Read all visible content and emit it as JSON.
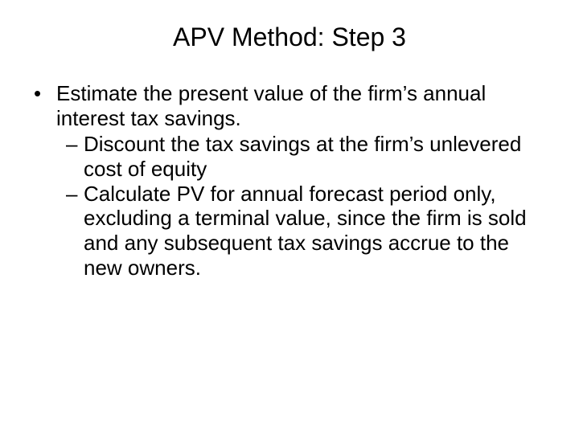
{
  "slide": {
    "title": "APV Method: Step 3",
    "background_color": "#ffffff",
    "text_color": "#000000",
    "title_fontsize": 32,
    "body_fontsize": 26,
    "font_family": "Arial",
    "bullets": [
      {
        "level": 1,
        "marker": "•",
        "text": "Estimate the present value of the firm’s annual interest tax savings."
      },
      {
        "level": 2,
        "marker": "–",
        "text": "Discount the tax savings at the firm’s unlevered cost of equity"
      },
      {
        "level": 2,
        "marker": "–",
        "text": "Calculate PV for annual forecast period only, excluding a terminal value, since the firm is sold and any subsequent tax savings accrue to the new owners."
      }
    ]
  }
}
